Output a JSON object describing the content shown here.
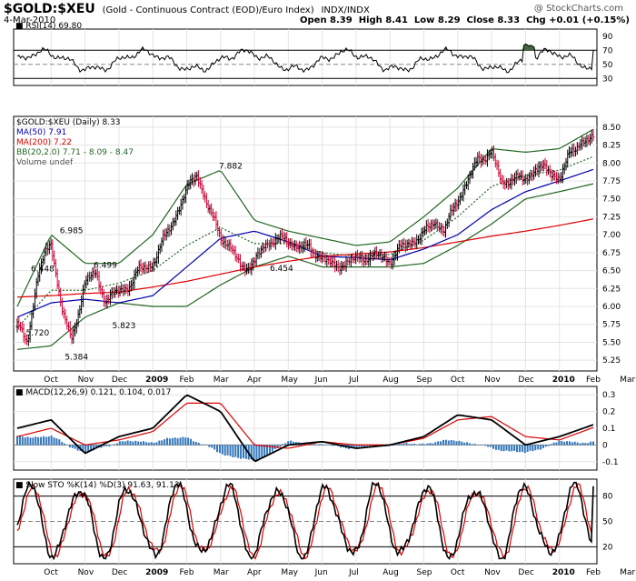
{
  "header": {
    "symbol": "$GOLD:$XEU",
    "description": "(Gold - Continuous Contract (EOD)/Euro Index)",
    "exchange": "INDX/INDX",
    "date": "4-Mar-2010",
    "open_label": "Open",
    "open": "8.39",
    "high_label": "High",
    "high": "8.41",
    "low_label": "Low",
    "low": "8.29",
    "close_label": "Close",
    "close": "8.33",
    "chg_label": "Chg",
    "chg": "+0.01 (+0.15%)",
    "watermark": "@ StockCharts.com"
  },
  "colors": {
    "price_up": "#000000",
    "price_down": "#cc0033",
    "ma50": "#0000aa",
    "ma200": "#dd0000",
    "bb": "#226622",
    "macd": "#000000",
    "signal": "#dd0000",
    "hist": "#3377bb",
    "rsi": "#000000",
    "sto_k": "#000000",
    "sto_d": "#dd0000",
    "rsi_fill": "#446644"
  },
  "chart_data": [
    {
      "type": "line",
      "panel": "RSI",
      "title": "RSI(14) 69.80",
      "y_ticks": [
        30,
        50,
        70,
        90
      ],
      "ylim": [
        20,
        100
      ],
      "reference_lines": [
        30,
        70
      ],
      "last_value": 69.8
    },
    {
      "type": "line",
      "panel": "Price",
      "legend": [
        "$GOLD:$XEU (Daily) 8.33",
        "MA(50) 7.91",
        "MA(200) 7.22",
        "BB(20,2.0) 7.71 - 8.09 - 8.47",
        "Volume undef"
      ],
      "x_labels": [
        "Oct",
        "Nov",
        "Dec",
        "2009",
        "Feb",
        "Mar",
        "Apr",
        "May",
        "Jun",
        "Jul",
        "Aug",
        "Sep",
        "Oct",
        "Nov",
        "Dec",
        "2010",
        "Feb",
        "Mar"
      ],
      "y_ticks": [
        5.25,
        5.5,
        5.75,
        6.0,
        6.25,
        6.5,
        6.75,
        7.0,
        7.25,
        7.5,
        7.75,
        8.0,
        8.25,
        8.5
      ],
      "ylim": [
        5.1,
        8.65
      ],
      "annotations": [
        {
          "text": "5.720",
          "x": 0.2,
          "y": 5.72
        },
        {
          "text": "6.448",
          "x": 0.35,
          "y": 6.448
        },
        {
          "text": "6.985",
          "x": 1.2,
          "y": 6.985
        },
        {
          "text": "5.384",
          "x": 1.35,
          "y": 5.384
        },
        {
          "text": "6.499",
          "x": 2.2,
          "y": 6.499
        },
        {
          "text": "5.823",
          "x": 2.75,
          "y": 5.823
        },
        {
          "text": "7.882",
          "x": 5.9,
          "y": 7.882
        },
        {
          "text": "6.454",
          "x": 7.4,
          "y": 6.454
        }
      ],
      "series": [
        {
          "name": "$GOLD:$XEU",
          "months": [
            0,
            0.3,
            0.6,
            1,
            1.3,
            1.6,
            2,
            2.3,
            2.6,
            3,
            3.3,
            3.6,
            4,
            4.3,
            4.6,
            5,
            5.3,
            5.6,
            6,
            6.3,
            6.6,
            7,
            7.3,
            7.6,
            8,
            8.3,
            8.6,
            9,
            9.3,
            9.6,
            10,
            10.3,
            10.6,
            11,
            11.3,
            11.6,
            12,
            12.3,
            12.6,
            13,
            13.3,
            13.6,
            14,
            14.3,
            14.6,
            15,
            15.3,
            15.6,
            16,
            16.3,
            16.6,
            17
          ],
          "values": [
            5.72,
            5.5,
            6.45,
            6.9,
            6.0,
            5.5,
            6.35,
            6.45,
            6.1,
            6.2,
            6.3,
            6.5,
            6.6,
            6.9,
            7.2,
            7.6,
            7.88,
            7.4,
            7.0,
            6.8,
            6.55,
            6.6,
            6.85,
            6.95,
            6.9,
            6.85,
            6.8,
            6.7,
            6.55,
            6.6,
            6.65,
            6.7,
            6.7,
            6.65,
            6.8,
            6.9,
            7.0,
            7.2,
            7.05,
            7.5,
            7.75,
            8.05,
            8.15,
            7.7,
            7.8,
            7.75,
            7.95,
            7.9,
            7.8,
            8.1,
            8.3,
            8.33
          ]
        },
        {
          "name": "MA(50)",
          "months": [
            0,
            1,
            2,
            3,
            4,
            5,
            6,
            7,
            8,
            9,
            10,
            11,
            12,
            13,
            14,
            15,
            16,
            17
          ],
          "values": [
            5.85,
            6.05,
            6.1,
            6.05,
            6.15,
            6.55,
            6.95,
            7.05,
            6.9,
            6.7,
            6.68,
            6.65,
            6.8,
            7.0,
            7.35,
            7.6,
            7.75,
            7.91
          ]
        },
        {
          "name": "MA(200)",
          "months": [
            0,
            1,
            2,
            3,
            4,
            5,
            6,
            7,
            8,
            9,
            10,
            11,
            12,
            13,
            14,
            15,
            16,
            17
          ],
          "values": [
            6.13,
            6.15,
            6.18,
            6.2,
            6.27,
            6.35,
            6.45,
            6.55,
            6.63,
            6.7,
            6.73,
            6.76,
            6.82,
            6.9,
            6.98,
            7.05,
            7.13,
            7.22
          ]
        },
        {
          "name": "BB upper",
          "months": [
            0,
            1,
            2,
            3,
            4,
            5,
            6,
            7,
            8,
            9,
            10,
            11,
            12,
            13,
            14,
            15,
            16,
            17
          ],
          "values": [
            6.0,
            7.0,
            6.6,
            6.6,
            7.0,
            7.7,
            7.9,
            7.2,
            7.05,
            6.95,
            6.85,
            6.9,
            7.25,
            7.65,
            8.2,
            8.15,
            8.2,
            8.47
          ]
        },
        {
          "name": "BB lower",
          "months": [
            0,
            1,
            2,
            3,
            4,
            5,
            6,
            7,
            8,
            9,
            10,
            11,
            12,
            13,
            14,
            15,
            16,
            17
          ],
          "values": [
            5.4,
            5.45,
            5.85,
            6.05,
            6.0,
            6.0,
            6.3,
            6.55,
            6.7,
            6.55,
            6.55,
            6.55,
            6.6,
            6.85,
            7.15,
            7.5,
            7.6,
            7.71
          ]
        }
      ]
    },
    {
      "type": "line",
      "panel": "MACD",
      "title": "MACD(12,26,9) 0.121, 0.104, 0.017",
      "y_ticks": [
        0.3,
        0.2,
        0.1,
        0,
        -0.1
      ],
      "ylim": [
        -0.15,
        0.35
      ],
      "series": [
        {
          "name": "MACD",
          "months": [
            0,
            1,
            2,
            3,
            4,
            5,
            6,
            7,
            8,
            9,
            10,
            11,
            12,
            13,
            14,
            15,
            16,
            17
          ],
          "values": [
            0.1,
            0.15,
            -0.05,
            0.05,
            0.1,
            0.3,
            0.2,
            -0.1,
            0.0,
            0.02,
            -0.02,
            0.0,
            0.05,
            0.18,
            0.15,
            0.0,
            0.05,
            0.121
          ]
        },
        {
          "name": "Signal",
          "months": [
            0,
            1,
            2,
            3,
            4,
            5,
            6,
            7,
            8,
            9,
            10,
            11,
            12,
            13,
            14,
            15,
            16,
            17
          ],
          "values": [
            0.05,
            0.1,
            0.0,
            0.03,
            0.08,
            0.25,
            0.25,
            0.0,
            -0.02,
            0.02,
            0.0,
            0.0,
            0.04,
            0.15,
            0.17,
            0.05,
            0.03,
            0.104
          ]
        },
        {
          "name": "Histogram",
          "months": [
            0,
            1,
            2,
            3,
            4,
            5,
            6,
            7,
            8,
            9,
            10,
            11,
            12,
            13,
            14,
            15,
            16,
            17
          ],
          "values": [
            0.05,
            0.05,
            -0.05,
            0.02,
            0.02,
            0.05,
            -0.05,
            -0.1,
            0.02,
            0.0,
            -0.02,
            0.0,
            0.01,
            0.03,
            -0.02,
            -0.05,
            0.02,
            0.017
          ]
        }
      ]
    },
    {
      "type": "line",
      "panel": "Slow STO",
      "title": "Slow STO %K(14) %D(3) 91.63, 91.13",
      "y_ticks": [
        20,
        50,
        80
      ],
      "ylim": [
        0,
        100
      ],
      "series": [
        {
          "name": "%K",
          "last_value": 91.63
        },
        {
          "name": "%D",
          "last_value": 91.13
        }
      ]
    }
  ]
}
